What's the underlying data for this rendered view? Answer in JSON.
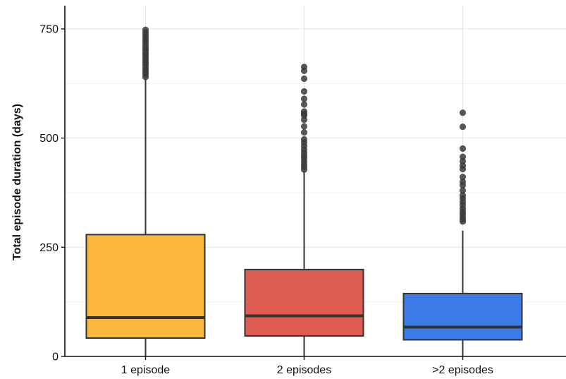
{
  "chart_data": {
    "type": "box",
    "title": "",
    "xlabel": "",
    "ylabel": "Total episode duration (days)",
    "ylim": [
      0,
      800
    ],
    "y_ticks": [
      0,
      250,
      500,
      750
    ],
    "grid": true,
    "categories": [
      "1 episode",
      "2 episodes",
      ">2 episodes"
    ],
    "boxes": [
      {
        "category": "1 episode",
        "color": "#FBB12E",
        "q1": 42,
        "median": 89,
        "q3": 279,
        "whisker_low": 0,
        "whisker_high": 635,
        "outliers": [
          640,
          646,
          651,
          657,
          662,
          668,
          673,
          679,
          684,
          690,
          695,
          701,
          706,
          712,
          718,
          724,
          730,
          736,
          742,
          748
        ]
      },
      {
        "category": "2 episodes",
        "color": "#DC5045",
        "q1": 47,
        "median": 93,
        "q3": 199,
        "whisker_low": 0,
        "whisker_high": 425,
        "outliers": [
          428,
          434,
          440,
          447,
          454,
          460,
          467,
          474,
          482,
          490,
          497,
          513,
          527,
          542,
          552,
          556,
          561,
          577,
          590,
          607,
          636,
          654,
          663
        ]
      },
      {
        "category": ">2 episodes",
        "color": "#2E72E6",
        "q1": 38,
        "median": 67,
        "q3": 144,
        "whisker_low": 0,
        "whisker_high": 288,
        "outliers": [
          309,
          314,
          320,
          326,
          332,
          339,
          347,
          354,
          362,
          369,
          380,
          392,
          400,
          411,
          429,
          437,
          447,
          457,
          476,
          526,
          558
        ]
      }
    ]
  }
}
